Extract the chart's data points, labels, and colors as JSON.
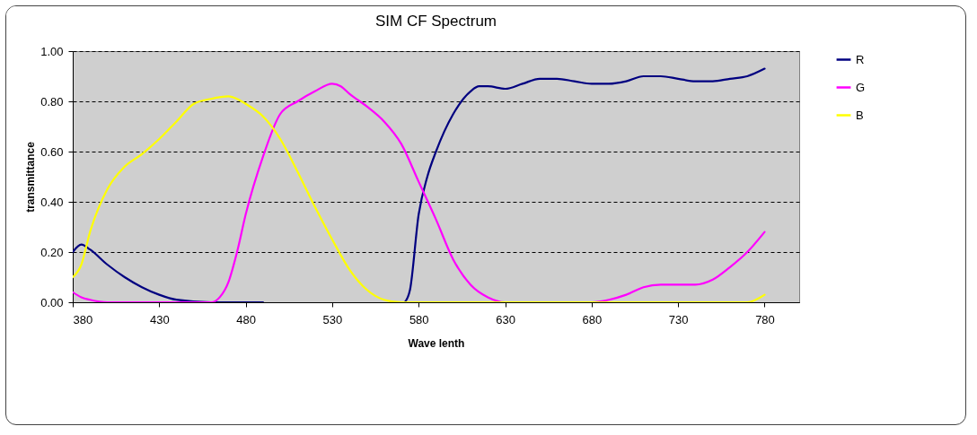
{
  "chart_data": {
    "type": "line",
    "title": "SIM CF Spectrum",
    "xlabel": "Wave lenth",
    "ylabel": "transmittance",
    "xlim": [
      380,
      800
    ],
    "xticks": [
      380,
      430,
      480,
      530,
      580,
      630,
      680,
      730,
      780
    ],
    "ylim": [
      0,
      1
    ],
    "yticks": [
      {
        "value": 0,
        "label": "0.00"
      },
      {
        "value": 0.2,
        "label": "0.20"
      },
      {
        "value": 0.4,
        "label": "0.40"
      },
      {
        "value": 0.6,
        "label": "0.60"
      },
      {
        "value": 0.8,
        "label": "0.80"
      },
      {
        "value": 1,
        "label": "1.00"
      }
    ],
    "grid": "y",
    "legend": "right",
    "marker": "none",
    "line_style": "solid",
    "series": [
      {
        "name": "R",
        "color": "#000080",
        "x": [
          380,
          385,
          390,
          400,
          410,
          420,
          430,
          440,
          460,
          480,
          490,
          500,
          572,
          575,
          580,
          585,
          590,
          600,
          610,
          615,
          620,
          630,
          640,
          650,
          660,
          670,
          680,
          690,
          700,
          710,
          720,
          730,
          740,
          750,
          760,
          770,
          780
        ],
        "values": [
          0.2,
          0.23,
          0.21,
          0.15,
          0.1,
          0.06,
          0.03,
          0.01,
          0,
          0,
          0,
          null,
          0,
          0.05,
          0.35,
          0.5,
          0.6,
          0.75,
          0.84,
          0.86,
          0.86,
          0.85,
          0.87,
          0.89,
          0.89,
          0.88,
          0.87,
          0.87,
          0.88,
          0.9,
          0.9,
          0.89,
          0.88,
          0.88,
          0.89,
          0.9,
          0.93
        ]
      },
      {
        "name": "G",
        "color": "#ff00ff",
        "x": [
          380,
          385,
          390,
          400,
          420,
          460,
          465,
          470,
          475,
          480,
          490,
          500,
          510,
          520,
          530,
          535,
          540,
          550,
          560,
          570,
          580,
          590,
          600,
          610,
          620,
          630,
          650,
          680,
          690,
          700,
          710,
          720,
          740,
          750,
          760,
          770,
          780
        ],
        "values": [
          0.04,
          0.02,
          0.01,
          0,
          0,
          0,
          0.02,
          0.08,
          0.2,
          0.35,
          0.58,
          0.75,
          0.8,
          0.84,
          0.87,
          0.86,
          0.83,
          0.78,
          0.72,
          0.63,
          0.48,
          0.33,
          0.17,
          0.07,
          0.02,
          0,
          0,
          0,
          0.01,
          0.03,
          0.06,
          0.07,
          0.07,
          0.09,
          0.14,
          0.2,
          0.28
        ]
      },
      {
        "name": "B",
        "color": "#ffff00",
        "x": [
          380,
          385,
          390,
          400,
          410,
          420,
          430,
          440,
          450,
          460,
          470,
          475,
          480,
          490,
          500,
          510,
          520,
          530,
          540,
          550,
          560,
          570,
          580,
          630,
          680,
          730,
          770,
          780
        ],
        "values": [
          0.1,
          0.15,
          0.28,
          0.45,
          0.54,
          0.59,
          0.65,
          0.72,
          0.79,
          0.81,
          0.82,
          0.81,
          0.79,
          0.74,
          0.65,
          0.52,
          0.38,
          0.25,
          0.13,
          0.05,
          0.01,
          0,
          0,
          0,
          0,
          0,
          0,
          0.03
        ]
      }
    ]
  }
}
